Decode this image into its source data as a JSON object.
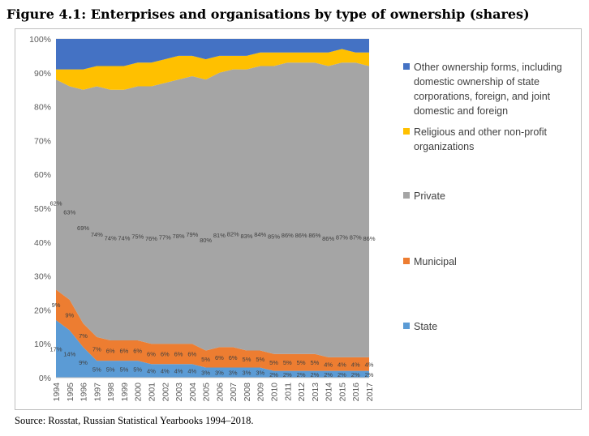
{
  "figure": {
    "title": "Figure 4.1: Enterprises and organisations by type of ownership (shares)",
    "source": "Source: Rosstat, Russian Statistical Yearbooks 1994–2018."
  },
  "chart_data": {
    "type": "area",
    "stacked": true,
    "x": [
      "1994",
      "1995",
      "1996",
      "1997",
      "1998",
      "1999",
      "2000",
      "2001",
      "2002",
      "2003",
      "2004",
      "2005",
      "2006",
      "2007",
      "2008",
      "2009",
      "2010",
      "2011",
      "2012",
      "2013",
      "2014",
      "2015",
      "2016",
      "2017"
    ],
    "ylim": [
      0,
      100
    ],
    "yticks": [
      "0%",
      "10%",
      "20%",
      "30%",
      "40%",
      "50%",
      "60%",
      "70%",
      "80%",
      "90%",
      "100%"
    ],
    "legend_placement": "right",
    "series": [
      {
        "name": "State",
        "color": "#5b9bd5",
        "values": [
          17,
          14,
          9,
          5,
          5,
          5,
          5,
          4,
          4,
          4,
          4,
          3,
          3,
          3,
          3,
          3,
          2,
          2,
          2,
          2,
          2,
          2,
          2,
          2
        ],
        "labels": [
          "17%",
          "14%",
          "9%",
          "5%",
          "5%",
          "5%",
          "5%",
          "4%",
          "4%",
          "4%",
          "4%",
          "3%",
          "3%",
          "3%",
          "3%",
          "3%",
          "2%",
          "2%",
          "2%",
          "2%",
          "2%",
          "2%",
          "2%",
          "2%"
        ]
      },
      {
        "name": "Municipal",
        "color": "#ed7d31",
        "values": [
          9,
          9,
          7,
          7,
          6,
          6,
          6,
          6,
          6,
          6,
          6,
          5,
          6,
          6,
          5,
          5,
          5,
          5,
          5,
          5,
          4,
          4,
          4,
          4
        ],
        "labels": [
          "9%",
          "9%",
          "7%",
          "7%",
          "6%",
          "6%",
          "6%",
          "6%",
          "6%",
          "6%",
          "6%",
          "5%",
          "6%",
          "6%",
          "5%",
          "5%",
          "5%",
          "5%",
          "5%",
          "5%",
          "4%",
          "4%",
          "4%",
          "4%"
        ]
      },
      {
        "name": "Private",
        "color": "#a5a5a5",
        "values": [
          62,
          63,
          69,
          74,
          74,
          74,
          75,
          76,
          77,
          78,
          79,
          80,
          81,
          82,
          83,
          84,
          85,
          86,
          86,
          86,
          86,
          87,
          87,
          86
        ],
        "labels": [
          "62%",
          "63%",
          "69%",
          "74%",
          "74%",
          "74%",
          "75%",
          "76%",
          "77%",
          "78%",
          "79%",
          "80%",
          "81%",
          "82%",
          "83%",
          "84%",
          "85%",
          "86%",
          "86%",
          "86%",
          "86%",
          "87%",
          "87%",
          "86%"
        ]
      },
      {
        "name": "Religious and other non-profit organizations",
        "color": "#ffc000",
        "values": [
          3,
          5,
          6,
          6,
          7,
          7,
          7,
          7,
          7,
          7,
          6,
          6,
          5,
          4,
          4,
          4,
          4,
          3,
          3,
          3,
          4,
          4,
          3,
          4
        ]
      },
      {
        "name": "Other ownership forms, including domestic ownership of state corporations, foreign, and joint domestic and foreign",
        "color": "#4472c4",
        "values": [
          9,
          9,
          9,
          8,
          8,
          8,
          7,
          7,
          6,
          5,
          5,
          6,
          5,
          5,
          5,
          4,
          4,
          4,
          4,
          4,
          4,
          3,
          4,
          4
        ]
      }
    ]
  }
}
